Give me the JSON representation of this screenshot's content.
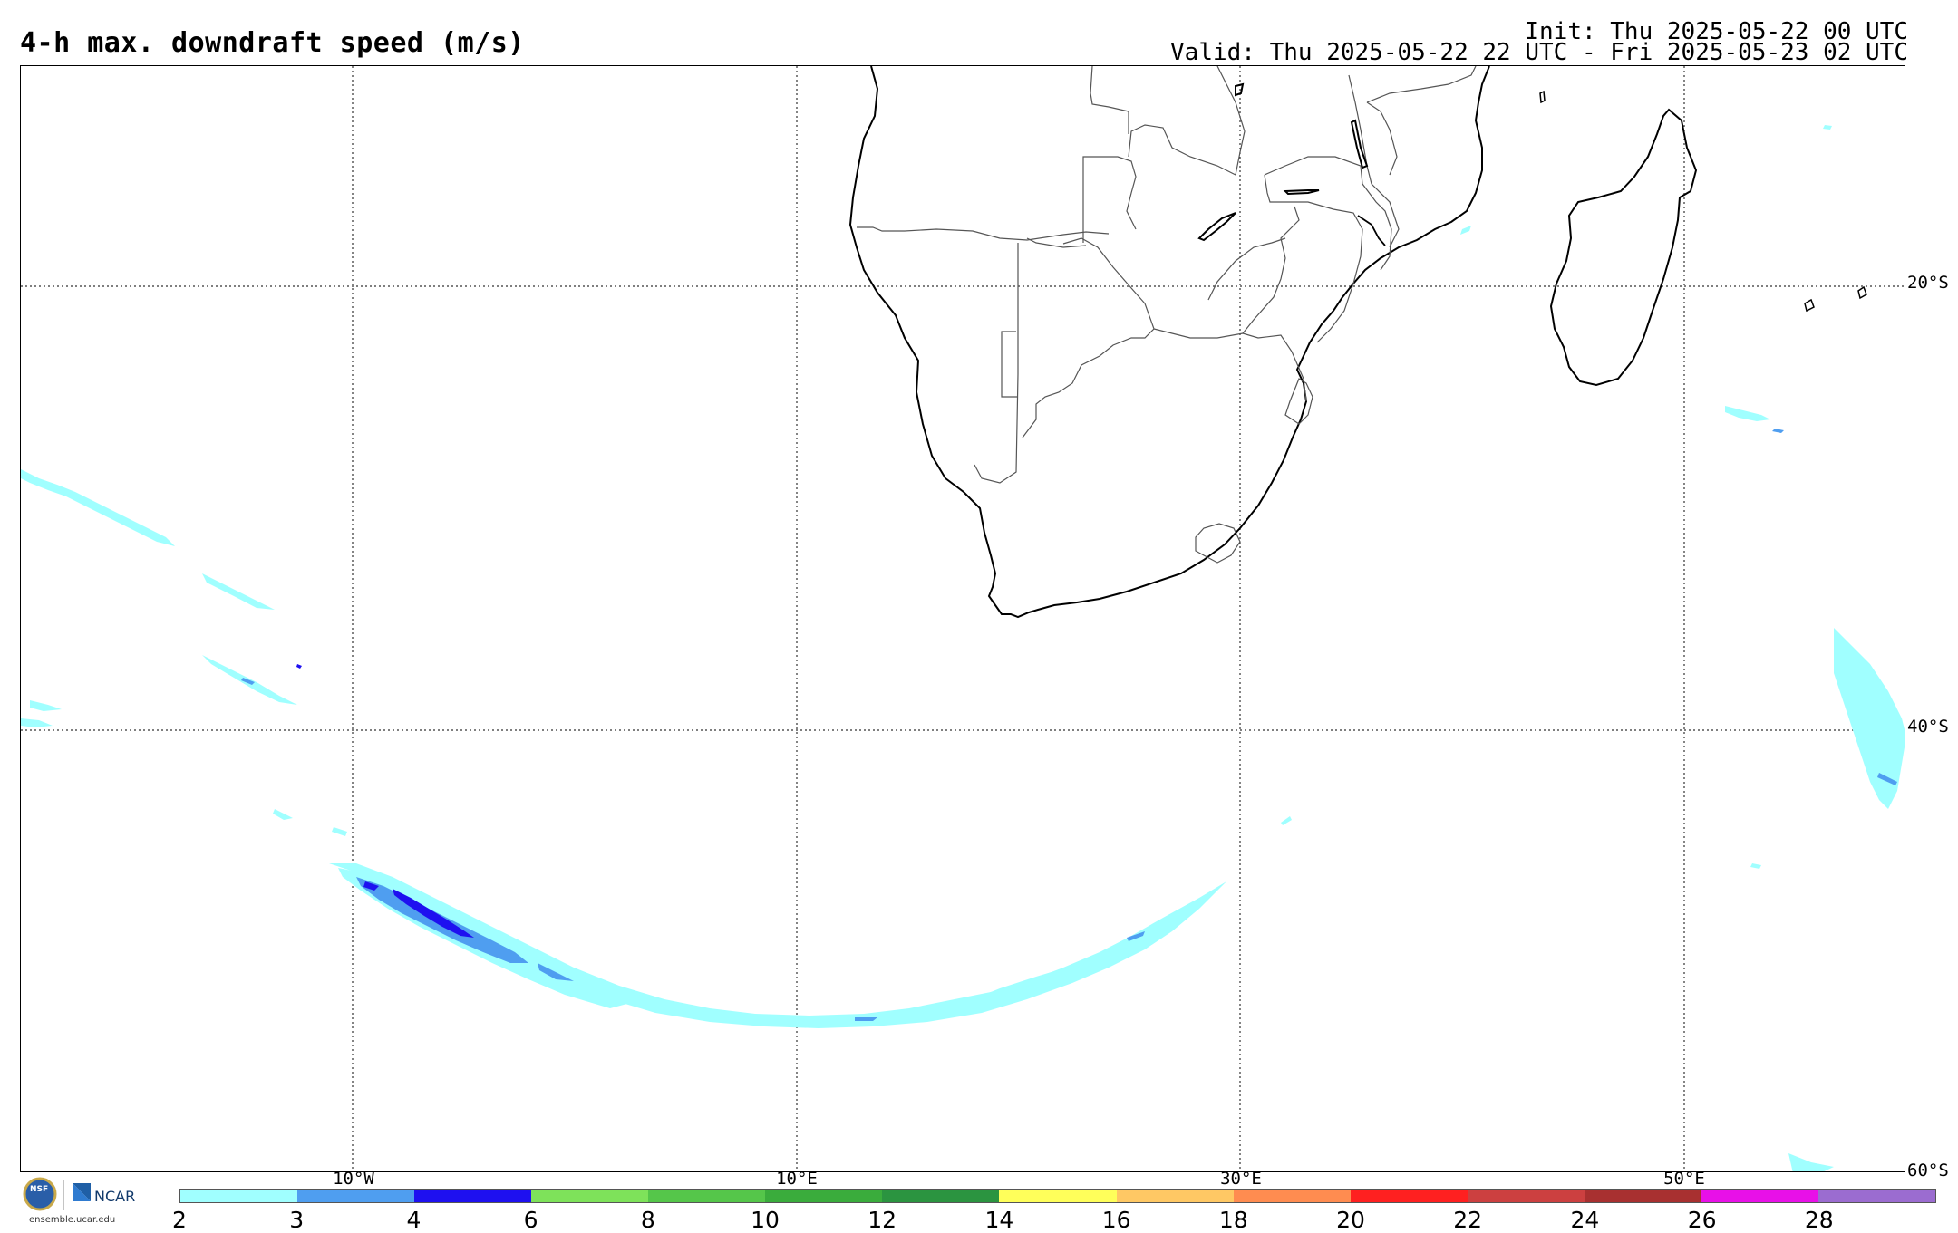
{
  "header": {
    "title": "4-h max. downdraft speed (m/s)",
    "init": "Init: Thu 2025-05-22 00 UTC",
    "valid": "Valid: Thu 2025-05-22 22 UTC - Fri 2025-05-23 02 UTC"
  },
  "map": {
    "lat_labels": [
      "20°S",
      "40°S",
      "60°S"
    ],
    "lon_labels": [
      "10°W",
      "10°E",
      "30°E",
      "50°E"
    ],
    "gridlines": "dotted"
  },
  "colorbar": {
    "ticks": [
      "2",
      "3",
      "4",
      "6",
      "8",
      "10",
      "12",
      "14",
      "16",
      "18",
      "20",
      "22",
      "24",
      "26",
      "28"
    ],
    "colors": [
      "#a0ffff",
      "#4f9ef0",
      "#1e10f0",
      "#7ee25a",
      "#55c64a",
      "#3aac3c",
      "#2b9440",
      "#ffff5a",
      "#ffc864",
      "#ff8c50",
      "#ff2020",
      "#cc4040",
      "#a83030",
      "#e810e8",
      "#9b6cd0"
    ]
  },
  "logo": {
    "org1": "NSF",
    "org2": "NCAR",
    "url": "ensemble.ucar.edu"
  }
}
